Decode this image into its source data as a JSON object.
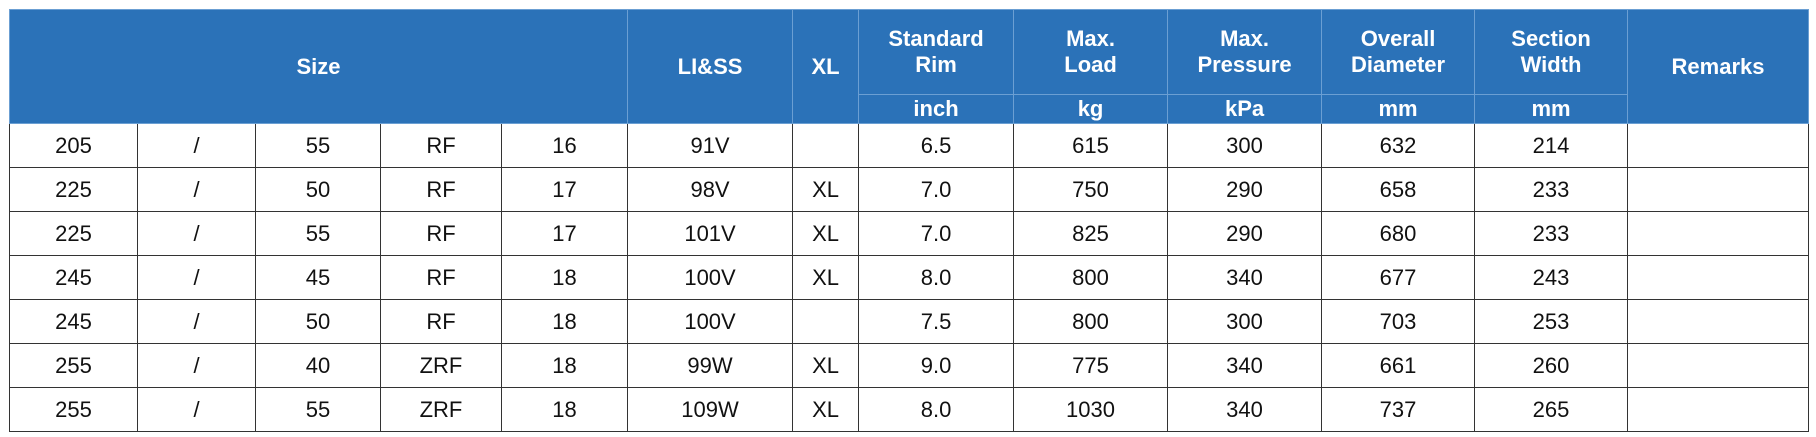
{
  "header": {
    "size": "Size",
    "li_ss": "LI&SS",
    "xl": "XL",
    "columns": [
      {
        "title": "Standard Rim",
        "unit": "inch"
      },
      {
        "title": "Max. Load",
        "unit": "kg"
      },
      {
        "title": "Max. Pressure",
        "unit": "kPa"
      },
      {
        "title": "Overall Diameter",
        "unit": "mm"
      },
      {
        "title": "Section Width",
        "unit": "mm"
      }
    ],
    "remarks": "Remarks"
  },
  "table": {
    "rows": [
      [
        "205",
        "/",
        "55",
        "RF",
        "16",
        "91V",
        null,
        "6.5",
        "615",
        "300",
        "632",
        "214"
      ],
      [
        "225",
        "/",
        "50",
        "RF",
        "17",
        "98V",
        "XL",
        "7.0",
        "750",
        "290",
        "658",
        "233"
      ],
      [
        "225",
        "/",
        "55",
        "RF",
        "17",
        "101V",
        "XL",
        "7.0",
        "825",
        "290",
        "680",
        "233"
      ],
      [
        "245",
        "/",
        "45",
        "RF",
        "18",
        "100V",
        "XL",
        "8.0",
        "800",
        "340",
        "677",
        "243"
      ],
      [
        "245",
        "/",
        "50",
        "RF",
        "18",
        "100V",
        null,
        "7.5",
        "800",
        "300",
        "703",
        "253"
      ],
      [
        "255",
        "/",
        "40",
        "ZRF",
        "18",
        "99W",
        "XL",
        "9.0",
        "775",
        "340",
        "661",
        "260"
      ],
      [
        "255",
        "/",
        "55",
        "ZRF",
        "18",
        "109W",
        "XL",
        "8.0",
        "1030",
        "340",
        "737",
        "265"
      ]
    ]
  }
}
